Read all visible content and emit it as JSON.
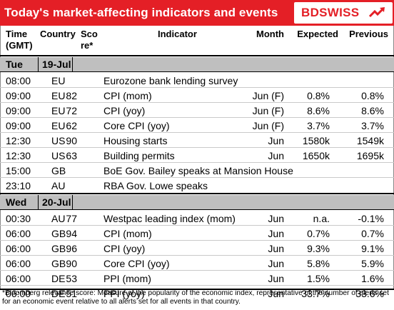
{
  "header": {
    "title": "Today's market-affecting indicators and events",
    "logo_text": "BDSWISS",
    "accent_color": "#e41f26"
  },
  "columns": {
    "time": [
      "Time",
      "(GMT)"
    ],
    "country": "Country",
    "score": [
      "Sco",
      "re*"
    ],
    "indicator": "Indicator",
    "month": "Month",
    "expected": "Expected",
    "previous": "Previous"
  },
  "days": [
    {
      "day": "Tue",
      "date": "19-Jul",
      "rows": [
        {
          "time": "08:00",
          "country": "EU",
          "score": "",
          "indicator": "Eurozone bank lending survey",
          "month": "",
          "expected": "",
          "previous": ""
        },
        {
          "time": "09:00",
          "country": "EU",
          "score": "82",
          "indicator": "CPI (mom)",
          "month": "Jun (F)",
          "expected": "0.8%",
          "previous": "0.8%"
        },
        {
          "time": "09:00",
          "country": "EU",
          "score": "72",
          "indicator": "CPI (yoy)",
          "month": "Jun (F)",
          "expected": "8.6%",
          "previous": "8.6%"
        },
        {
          "time": "09:00",
          "country": "EU",
          "score": "62",
          "indicator": "Core CPI (yoy)",
          "month": "Jun (F)",
          "expected": "3.7%",
          "previous": "3.7%"
        },
        {
          "time": "12:30",
          "country": "US",
          "score": "90",
          "indicator": "Housing starts",
          "month": "Jun",
          "expected": "1580k",
          "previous": "1549k"
        },
        {
          "time": "12:30",
          "country": "US",
          "score": "63",
          "indicator": "Building permits",
          "month": "Jun",
          "expected": "1650k",
          "previous": "1695k"
        },
        {
          "time": "15:00",
          "country": "GB",
          "score": "",
          "indicator": "BoE Gov. Bailey speaks at Mansion House",
          "month": "",
          "expected": "",
          "previous": ""
        },
        {
          "time": "23:10",
          "country": "AU",
          "score": "",
          "indicator": "RBA Gov. Lowe speaks",
          "month": "",
          "expected": "",
          "previous": ""
        }
      ]
    },
    {
      "day": "Wed",
      "date": "20-Jul",
      "rows": [
        {
          "time": "00:30",
          "country": "AU",
          "score": "77",
          "indicator": "Westpac leading index (mom)",
          "month": "Jun",
          "expected": "n.a.",
          "previous": "-0.1%"
        },
        {
          "time": "06:00",
          "country": "GB",
          "score": "94",
          "indicator": "CPI (mom)",
          "month": "Jun",
          "expected": "0.7%",
          "previous": "0.7%"
        },
        {
          "time": "06:00",
          "country": "GB",
          "score": "96",
          "indicator": "CPI (yoy)",
          "month": "Jun",
          "expected": "9.3%",
          "previous": "9.1%"
        },
        {
          "time": "06:00",
          "country": "GB",
          "score": "90",
          "indicator": "Core CPI (yoy)",
          "month": "Jun",
          "expected": "5.8%",
          "previous": "5.9%"
        },
        {
          "time": "06:00",
          "country": "DE",
          "score": "53",
          "indicator": "PPI (mom)",
          "month": "Jun",
          "expected": "1.5%",
          "previous": "1.6%"
        },
        {
          "time": "06:00",
          "country": "DE",
          "score": "51",
          "indicator": "PPI (yoy)",
          "month": "Jun",
          "expected": "33.7%",
          "previous": "33.6%"
        }
      ]
    }
  ],
  "footnote": "*Bloomberg relevance score: Measure of the popularity of the economic index, representative of the number of alerts set for an economic event relative to all alerts set for all events in that country."
}
